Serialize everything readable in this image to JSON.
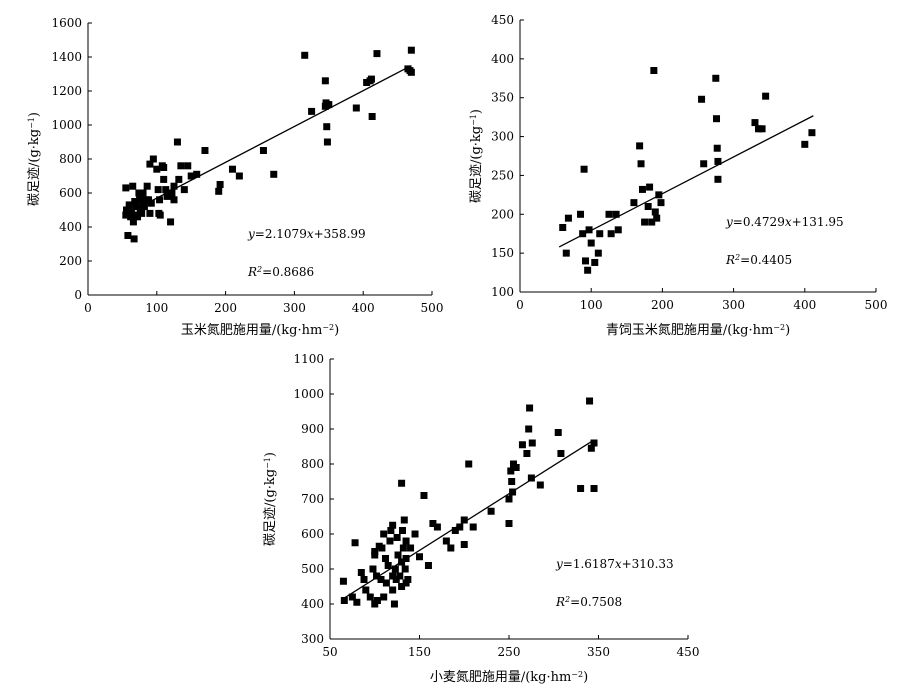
{
  "chart_data": [
    {
      "type": "scatter",
      "xlabel": "玉米氮肥施用量/(kg·hm⁻²)",
      "ylabel": "碳足迹/(g·kg⁻¹)",
      "xlim": [
        0,
        500
      ],
      "ylim": [
        0,
        1600
      ],
      "xticks": [
        "0",
        "100",
        "200",
        "300",
        "400",
        "500"
      ],
      "yticks": [
        "0",
        "200",
        "400",
        "600",
        "800",
        "1000",
        "1200",
        "1400",
        "1600"
      ],
      "grid": false,
      "fit": {
        "slope": 2.1079,
        "intercept": 358.99,
        "x_range": [
          55,
          470
        ]
      },
      "equation": "y=2.1079x+358.99",
      "r2_text": "R²=0.8686",
      "x": [
        55,
        55,
        56,
        58,
        60,
        60,
        62,
        63,
        65,
        65,
        66,
        67,
        68,
        70,
        70,
        72,
        74,
        75,
        76,
        78,
        80,
        80,
        82,
        85,
        86,
        88,
        90,
        90,
        92,
        95,
        100,
        102,
        103,
        104,
        105,
        108,
        110,
        110,
        113,
        115,
        120,
        122,
        125,
        125,
        130,
        132,
        135,
        140,
        145,
        150,
        158,
        170,
        190,
        192,
        210,
        220,
        255,
        270,
        315,
        325,
        345,
        345,
        346,
        347,
        348,
        350,
        390,
        405,
        410,
        412,
        413,
        420,
        465,
        468,
        470,
        470
      ],
      "y": [
        630,
        470,
        500,
        350,
        520,
        530,
        460,
        480,
        640,
        470,
        430,
        330,
        550,
        470,
        520,
        460,
        600,
        560,
        500,
        480,
        540,
        600,
        520,
        560,
        640,
        560,
        770,
        480,
        540,
        800,
        740,
        620,
        480,
        560,
        470,
        760,
        680,
        750,
        620,
        580,
        430,
        600,
        560,
        640,
        900,
        680,
        760,
        620,
        760,
        700,
        710,
        850,
        610,
        650,
        740,
        700,
        850,
        710,
        1410,
        1080,
        1260,
        1110,
        1130,
        990,
        900,
        1120,
        1100,
        1250,
        1260,
        1270,
        1050,
        1420,
        1330,
        1320,
        1440,
        1310
      ]
    },
    {
      "type": "scatter",
      "xlabel": "青饲玉米氮肥施用量/(kg·hm⁻²)",
      "ylabel": "碳足迹/(g·kg⁻¹)",
      "xlim": [
        0,
        500
      ],
      "ylim": [
        100,
        450
      ],
      "xticks": [
        "0",
        "100",
        "200",
        "300",
        "400",
        "500"
      ],
      "yticks": [
        "100",
        "150",
        "200",
        "250",
        "300",
        "350",
        "400",
        "450"
      ],
      "grid": false,
      "fit": {
        "slope": 0.4729,
        "intercept": 131.95,
        "x_range": [
          55,
          412
        ]
      },
      "equation": "y=0.4729x+131.95",
      "r2_text": "R²=0.4405",
      "x": [
        60,
        65,
        68,
        85,
        88,
        90,
        92,
        95,
        97,
        100,
        105,
        110,
        112,
        125,
        128,
        135,
        138,
        160,
        168,
        170,
        172,
        175,
        180,
        182,
        185,
        188,
        190,
        192,
        195,
        198,
        255,
        258,
        275,
        276,
        277,
        278,
        278,
        330,
        335,
        340,
        345,
        400,
        410
      ],
      "y": [
        183,
        150,
        195,
        200,
        175,
        258,
        140,
        128,
        180,
        163,
        138,
        150,
        175,
        200,
        175,
        200,
        180,
        215,
        288,
        265,
        232,
        190,
        210,
        235,
        190,
        385,
        203,
        195,
        225,
        215,
        348,
        265,
        375,
        323,
        285,
        268,
        245,
        318,
        310,
        310,
        352,
        290,
        305
      ]
    },
    {
      "type": "scatter",
      "xlabel": "小麦氮肥施用量/(kg·hm⁻²)",
      "ylabel": "碳足迹/(g·kg⁻¹)",
      "xlim": [
        50,
        450
      ],
      "ylim": [
        300,
        1100
      ],
      "xticks": [
        "50",
        "150",
        "250",
        "350",
        "450"
      ],
      "yticks": [
        "300",
        "400",
        "500",
        "600",
        "700",
        "800",
        "900",
        "1000",
        "1100"
      ],
      "grid": false,
      "fit": {
        "slope": 1.6187,
        "intercept": 310.33,
        "x_range": [
          65,
          345
        ]
      },
      "equation": "y=1.6187x+310.33",
      "r2_text": "R²=0.7508",
      "x": [
        65,
        66,
        75,
        78,
        80,
        85,
        88,
        90,
        95,
        98,
        100,
        100,
        100,
        102,
        103,
        105,
        107,
        108,
        110,
        110,
        112,
        113,
        115,
        117,
        118,
        120,
        120,
        120,
        122,
        123,
        124,
        125,
        126,
        128,
        130,
        130,
        130,
        131,
        132,
        133,
        134,
        135,
        135,
        135,
        137,
        140,
        145,
        150,
        155,
        160,
        165,
        170,
        180,
        185,
        190,
        195,
        200,
        200,
        205,
        210,
        230,
        250,
        250,
        252,
        253,
        254,
        255,
        258,
        265,
        270,
        272,
        273,
        275,
        276,
        285,
        305,
        308,
        330,
        340,
        342,
        345,
        345
      ],
      "y": [
        465,
        410,
        420,
        575,
        405,
        490,
        470,
        440,
        420,
        500,
        550,
        400,
        540,
        480,
        410,
        565,
        470,
        560,
        600,
        420,
        530,
        460,
        510,
        580,
        610,
        440,
        480,
        625,
        400,
        500,
        470,
        590,
        540,
        480,
        745,
        520,
        450,
        610,
        560,
        640,
        500,
        460,
        530,
        580,
        470,
        560,
        600,
        535,
        710,
        510,
        630,
        620,
        580,
        560,
        610,
        620,
        640,
        570,
        800,
        620,
        665,
        630,
        700,
        780,
        750,
        720,
        800,
        790,
        855,
        830,
        900,
        960,
        760,
        860,
        740,
        890,
        830,
        730,
        980,
        845,
        730,
        860
      ]
    }
  ]
}
